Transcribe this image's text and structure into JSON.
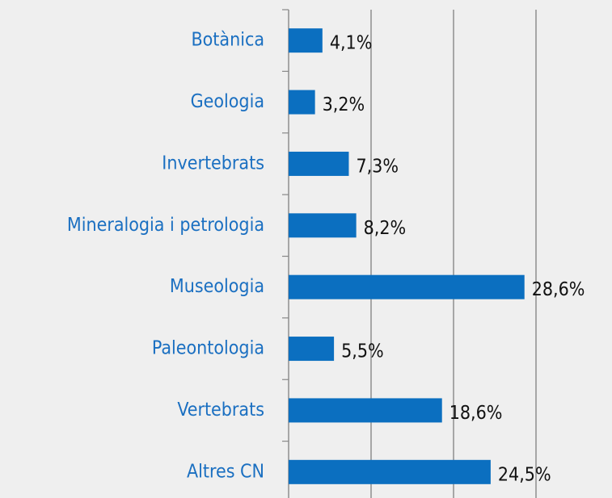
{
  "chart_data": {
    "type": "hbar",
    "categories": [
      "Botànica",
      "Geologia",
      "Invertebrats",
      "Mineralogia i petrologia",
      "Museologia",
      "Paleontologia",
      "Vertebrats",
      "Altres CN"
    ],
    "values": [
      4.1,
      3.2,
      7.3,
      8.2,
      28.6,
      5.5,
      18.6,
      24.5
    ],
    "value_labels": [
      "4,1%",
      "3,2%",
      "7,3%",
      "8,2%",
      "28,6%",
      "5,5%",
      "18,6%",
      "24,5%"
    ],
    "color": "#0b6fc0",
    "xlim": [
      0,
      30
    ],
    "xticks": [
      0,
      10,
      20,
      30
    ],
    "grid": true
  }
}
